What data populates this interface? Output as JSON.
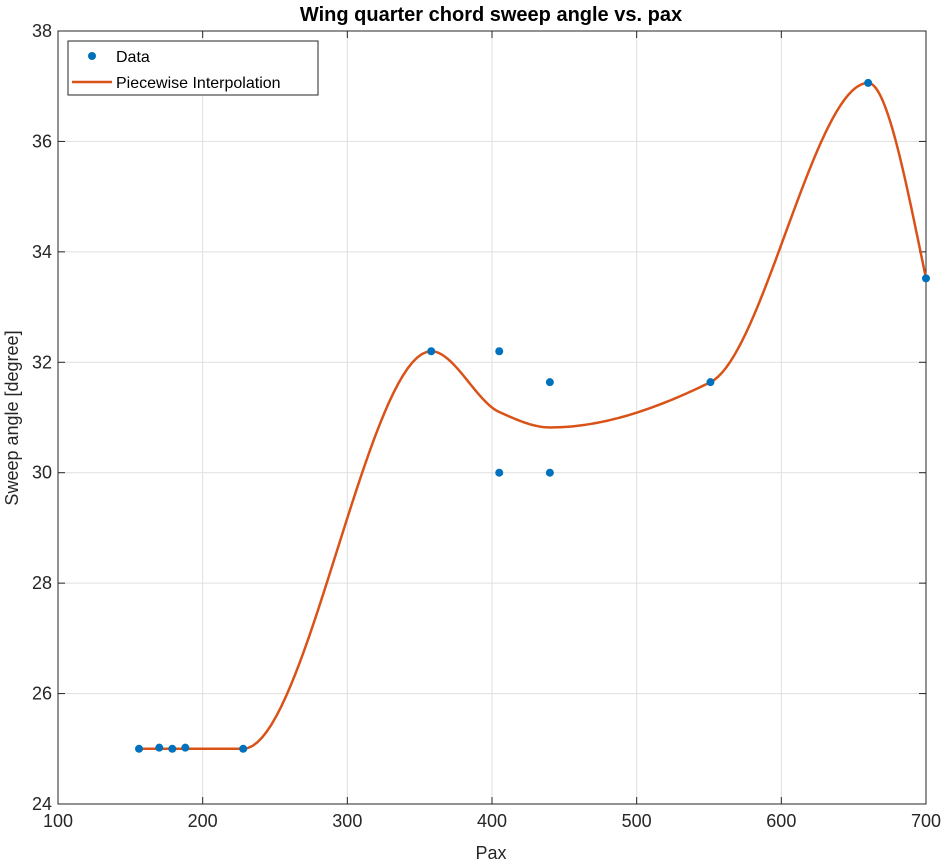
{
  "chart_data": {
    "type": "line",
    "title": "Wing quarter chord sweep angle vs. pax",
    "xlabel": "Pax",
    "ylabel": "Sweep angle [degree]",
    "xlim": [
      100,
      700
    ],
    "ylim": [
      24,
      38
    ],
    "xticks": [
      100,
      200,
      300,
      400,
      500,
      600,
      700
    ],
    "yticks": [
      24,
      26,
      28,
      30,
      32,
      34,
      36,
      38
    ],
    "xtick_labels": [
      "100",
      "200",
      "300",
      "400",
      "500",
      "600",
      "700"
    ],
    "ytick_labels": [
      "24",
      "26",
      "28",
      "30",
      "32",
      "34",
      "36",
      "38"
    ],
    "grid": true,
    "legend_position": "top-left",
    "series": [
      {
        "name": "Data",
        "style": "markers",
        "color": "#0072BD",
        "x": [
          156,
          170,
          179,
          188,
          228,
          358,
          405,
          405,
          440,
          440,
          551,
          660,
          700
        ],
        "y": [
          25,
          25.02,
          25,
          25.02,
          25,
          32.2,
          32.2,
          30,
          31.64,
          30,
          31.64,
          37.06,
          33.52
        ]
      },
      {
        "name": "Piecewise Interpolation",
        "style": "line",
        "color": "#D95319",
        "x": [
          156,
          228,
          358,
          405,
          440,
          551,
          660,
          700
        ],
        "y": [
          25,
          25,
          32.2,
          31.1,
          30.82,
          31.64,
          37.06,
          33.52
        ]
      }
    ]
  }
}
